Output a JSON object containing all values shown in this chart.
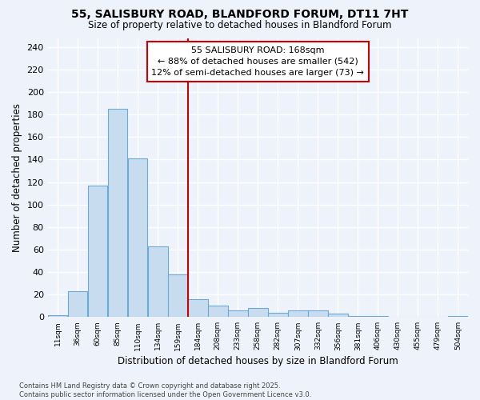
{
  "title_line1": "55, SALISBURY ROAD, BLANDFORD FORUM, DT11 7HT",
  "title_line2": "Size of property relative to detached houses in Blandford Forum",
  "xlabel": "Distribution of detached houses by size in Blandford Forum",
  "ylabel": "Number of detached properties",
  "categories": [
    "11sqm",
    "36sqm",
    "60sqm",
    "85sqm",
    "110sqm",
    "134sqm",
    "159sqm",
    "184sqm",
    "208sqm",
    "233sqm",
    "258sqm",
    "282sqm",
    "307sqm",
    "332sqm",
    "356sqm",
    "381sqm",
    "406sqm",
    "430sqm",
    "455sqm",
    "479sqm",
    "504sqm"
  ],
  "values": [
    2,
    23,
    117,
    185,
    141,
    63,
    38,
    16,
    10,
    6,
    8,
    4,
    6,
    6,
    3,
    1,
    1,
    0,
    0,
    0,
    1
  ],
  "bar_color": "#c8dcf0",
  "bar_edge_color": "#6aaad4",
  "background_color": "#eef3fb",
  "grid_color": "#ffffff",
  "annotation_line1": "55 SALISBURY ROAD: 168sqm",
  "annotation_line2": "← 88% of detached houses are smaller (542)",
  "annotation_line3": "12% of semi-detached houses are larger (73) →",
  "annotation_box_facecolor": "#ffffff",
  "annotation_box_edgecolor": "#cc0000",
  "vline_color": "#cc0000",
  "vline_index": 7,
  "ylim_max": 248,
  "yticks": [
    0,
    20,
    40,
    60,
    80,
    100,
    120,
    140,
    160,
    180,
    200,
    220,
    240
  ],
  "footer_line1": "Contains HM Land Registry data © Crown copyright and database right 2025.",
  "footer_line2": "Contains public sector information licensed under the Open Government Licence v3.0."
}
